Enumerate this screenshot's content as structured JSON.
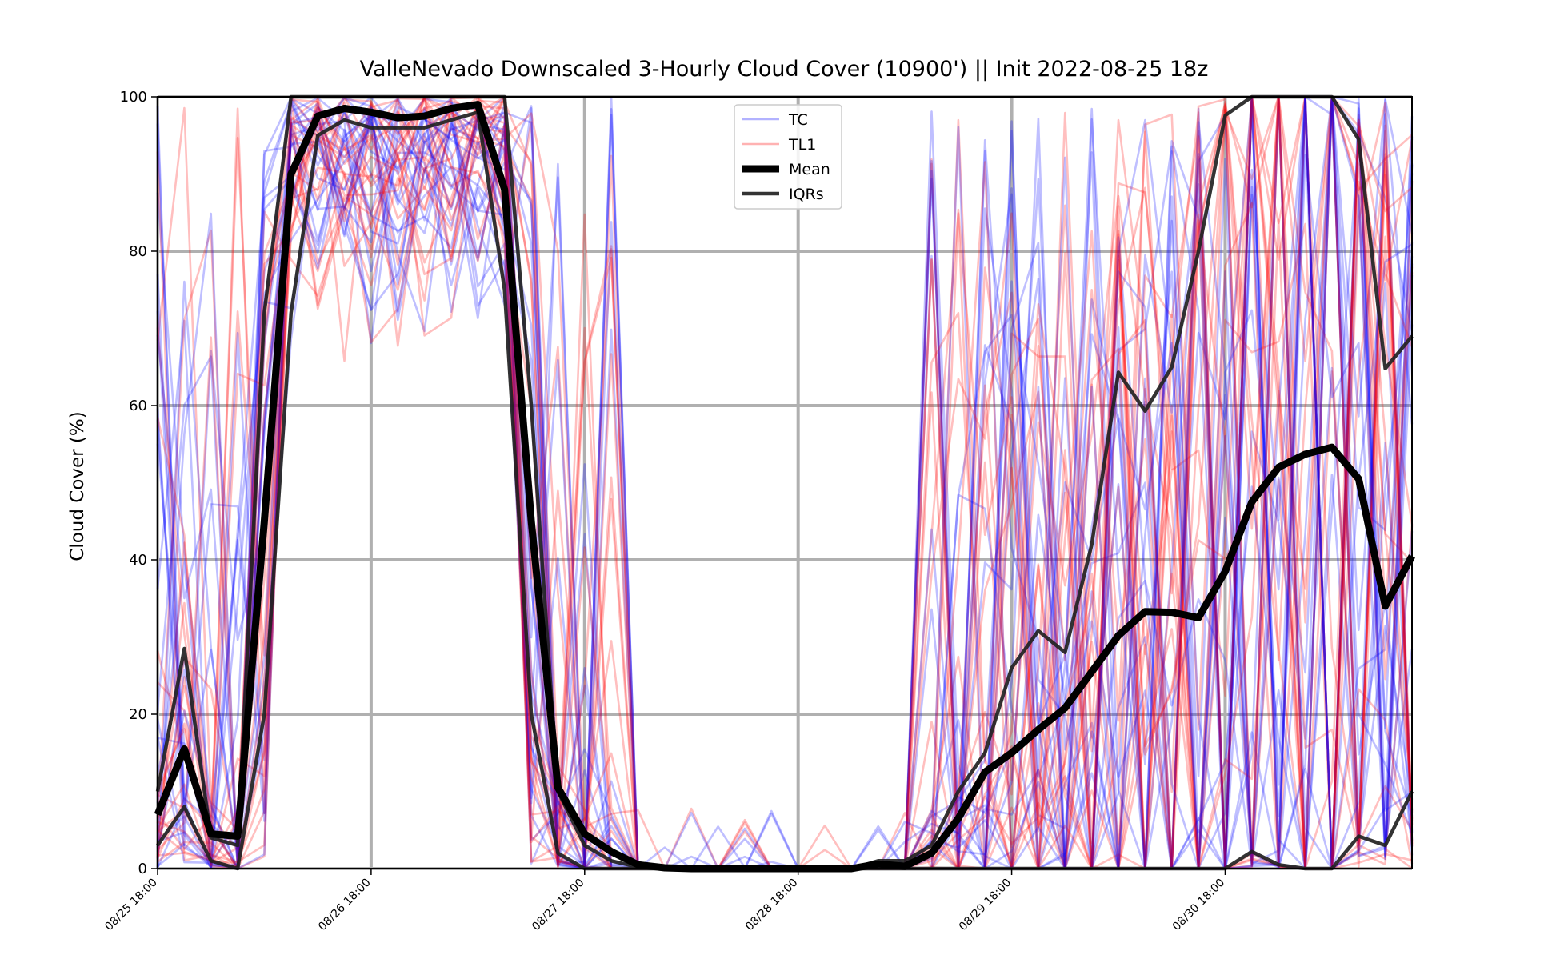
{
  "chart_data": {
    "type": "line",
    "title": "ValleNevado Downscaled 3-Hourly Cloud Cover (10900') || Init 2022-08-25 18z",
    "xlabel": "",
    "ylabel": "Cloud Cover (%)",
    "ylim": [
      0,
      100
    ],
    "yticks": [
      0,
      20,
      40,
      60,
      80,
      100
    ],
    "xticks": [
      "08/25 18:00",
      "08/26 18:00",
      "08/27 18:00",
      "08/28 18:00",
      "08/29 18:00",
      "08/30 18:00"
    ],
    "x_step_hours": 3,
    "grid": true,
    "legend": {
      "placement": "top-center",
      "entries": [
        "TC",
        "TL1",
        "Mean",
        "IQRs"
      ]
    },
    "colors": {
      "TC": "#0000ff",
      "TL1": "#ff0000",
      "Mean": "#000000",
      "IQRs": "#222222",
      "grid": "#b0b0b0"
    },
    "members_note_count": {
      "TC": 24,
      "TL1": 24
    },
    "series": [
      {
        "name": "Mean",
        "values": [
          7,
          15.5,
          4.5,
          4.2,
          45,
          90,
          97.5,
          98.5,
          98,
          97.3,
          97.5,
          98.5,
          99,
          88,
          45,
          10.5,
          4.5,
          2.2,
          0.5,
          0.1,
          0,
          0,
          0,
          0,
          0,
          0,
          0,
          0.6,
          0.3,
          2,
          6.5,
          12.5,
          15,
          18,
          20.8,
          25.5,
          30.2,
          33.3,
          33.2,
          32.5,
          38.5,
          47.5,
          52,
          53.7,
          54.6,
          50.5,
          34,
          40.5
        ]
      },
      {
        "name": "IQRs",
        "values": [
          10,
          28.5,
          4,
          3,
          72,
          100,
          100,
          100,
          100,
          100,
          100,
          100,
          100,
          100,
          60,
          10,
          3,
          1,
          0.2,
          0,
          0,
          0,
          0,
          0,
          0,
          0,
          0,
          1,
          1,
          3,
          10,
          15,
          26,
          30.8,
          28,
          42,
          64.3,
          59.3,
          65,
          80,
          97.6,
          100,
          100,
          100,
          100,
          94.5,
          64.8,
          69
        ]
      },
      {
        "name": "IQRs",
        "values": [
          3,
          8,
          1,
          0,
          20,
          72,
          95,
          97,
          96,
          96,
          96,
          97,
          98,
          75,
          20,
          2,
          0,
          0,
          0,
          0,
          0,
          0,
          0,
          0,
          0,
          0,
          0,
          0,
          0,
          0,
          0,
          0,
          0,
          0,
          0,
          0,
          0,
          0,
          0,
          0,
          0,
          2.2,
          0.5,
          0,
          0,
          4.2,
          3,
          10
        ]
      }
    ]
  }
}
